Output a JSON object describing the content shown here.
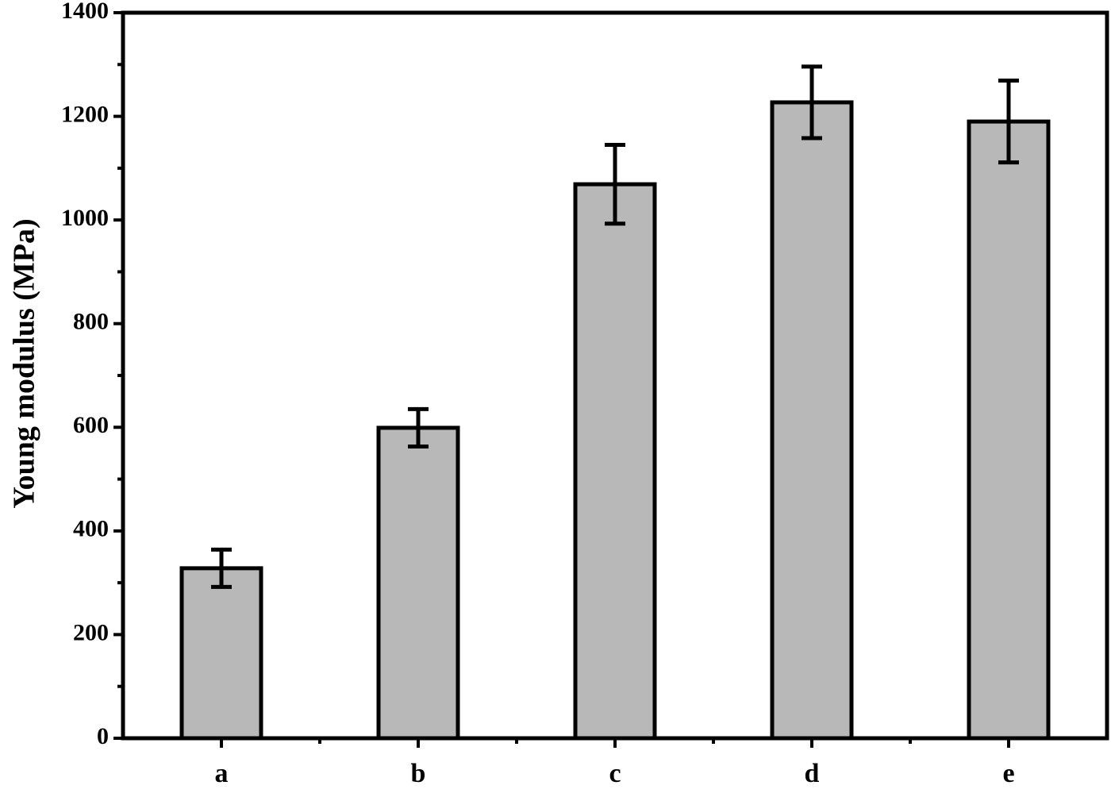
{
  "chart_data": {
    "type": "bar",
    "y_label": "Young modulus (MPa)",
    "categories": [
      "a",
      "b",
      "c",
      "d",
      "e"
    ],
    "values": [
      328,
      599,
      1069,
      1227,
      1190
    ],
    "errors": [
      36,
      36,
      76,
      69,
      79
    ],
    "color": "#b8b8b8",
    "ylim": [
      0,
      1400
    ],
    "yticks": [
      0,
      200,
      400,
      600,
      800,
      1000,
      1200,
      1400
    ],
    "grid": false
  }
}
